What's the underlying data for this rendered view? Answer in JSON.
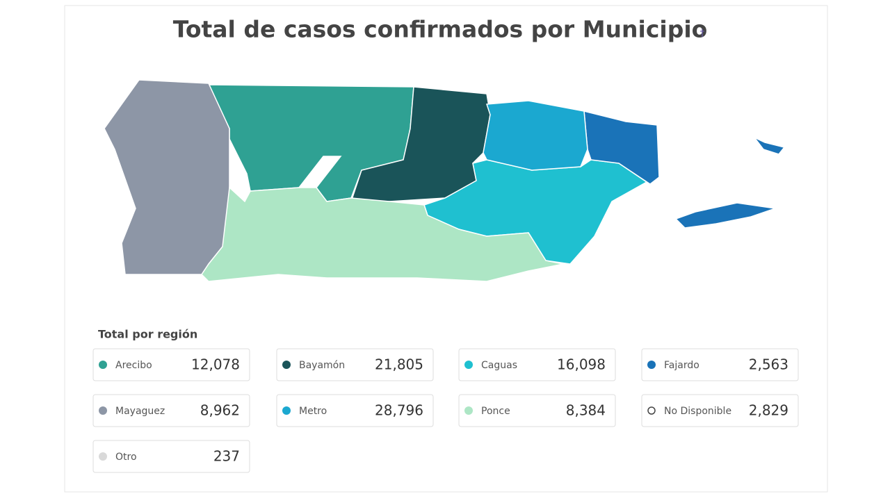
{
  "header": {
    "title": "Total de casos confirmados por Municipio",
    "mark": "†"
  },
  "legend": {
    "title": "Total por región",
    "regions": [
      {
        "name": "Arecibo",
        "color": "#2fa193",
        "value": "12,078"
      },
      {
        "name": "Bayamón",
        "color": "#1a5459",
        "value": "21,805"
      },
      {
        "name": "Caguas",
        "color": "#1fc0d0",
        "value": "16,098"
      },
      {
        "name": "Fajardo",
        "color": "#1a73b8",
        "value": "2,563"
      },
      {
        "name": "Mayaguez",
        "color": "#8d96a6",
        "value": "8,962"
      },
      {
        "name": "Metro",
        "color": "#1ba8d0",
        "value": "28,796"
      },
      {
        "name": "Ponce",
        "color": "#ade6c5",
        "value": "8,384"
      },
      {
        "name": "No Disponible",
        "color": "none",
        "value": "2,829"
      },
      {
        "name": "Otro",
        "color": "#d9d9d9",
        "value": "237"
      }
    ]
  }
}
